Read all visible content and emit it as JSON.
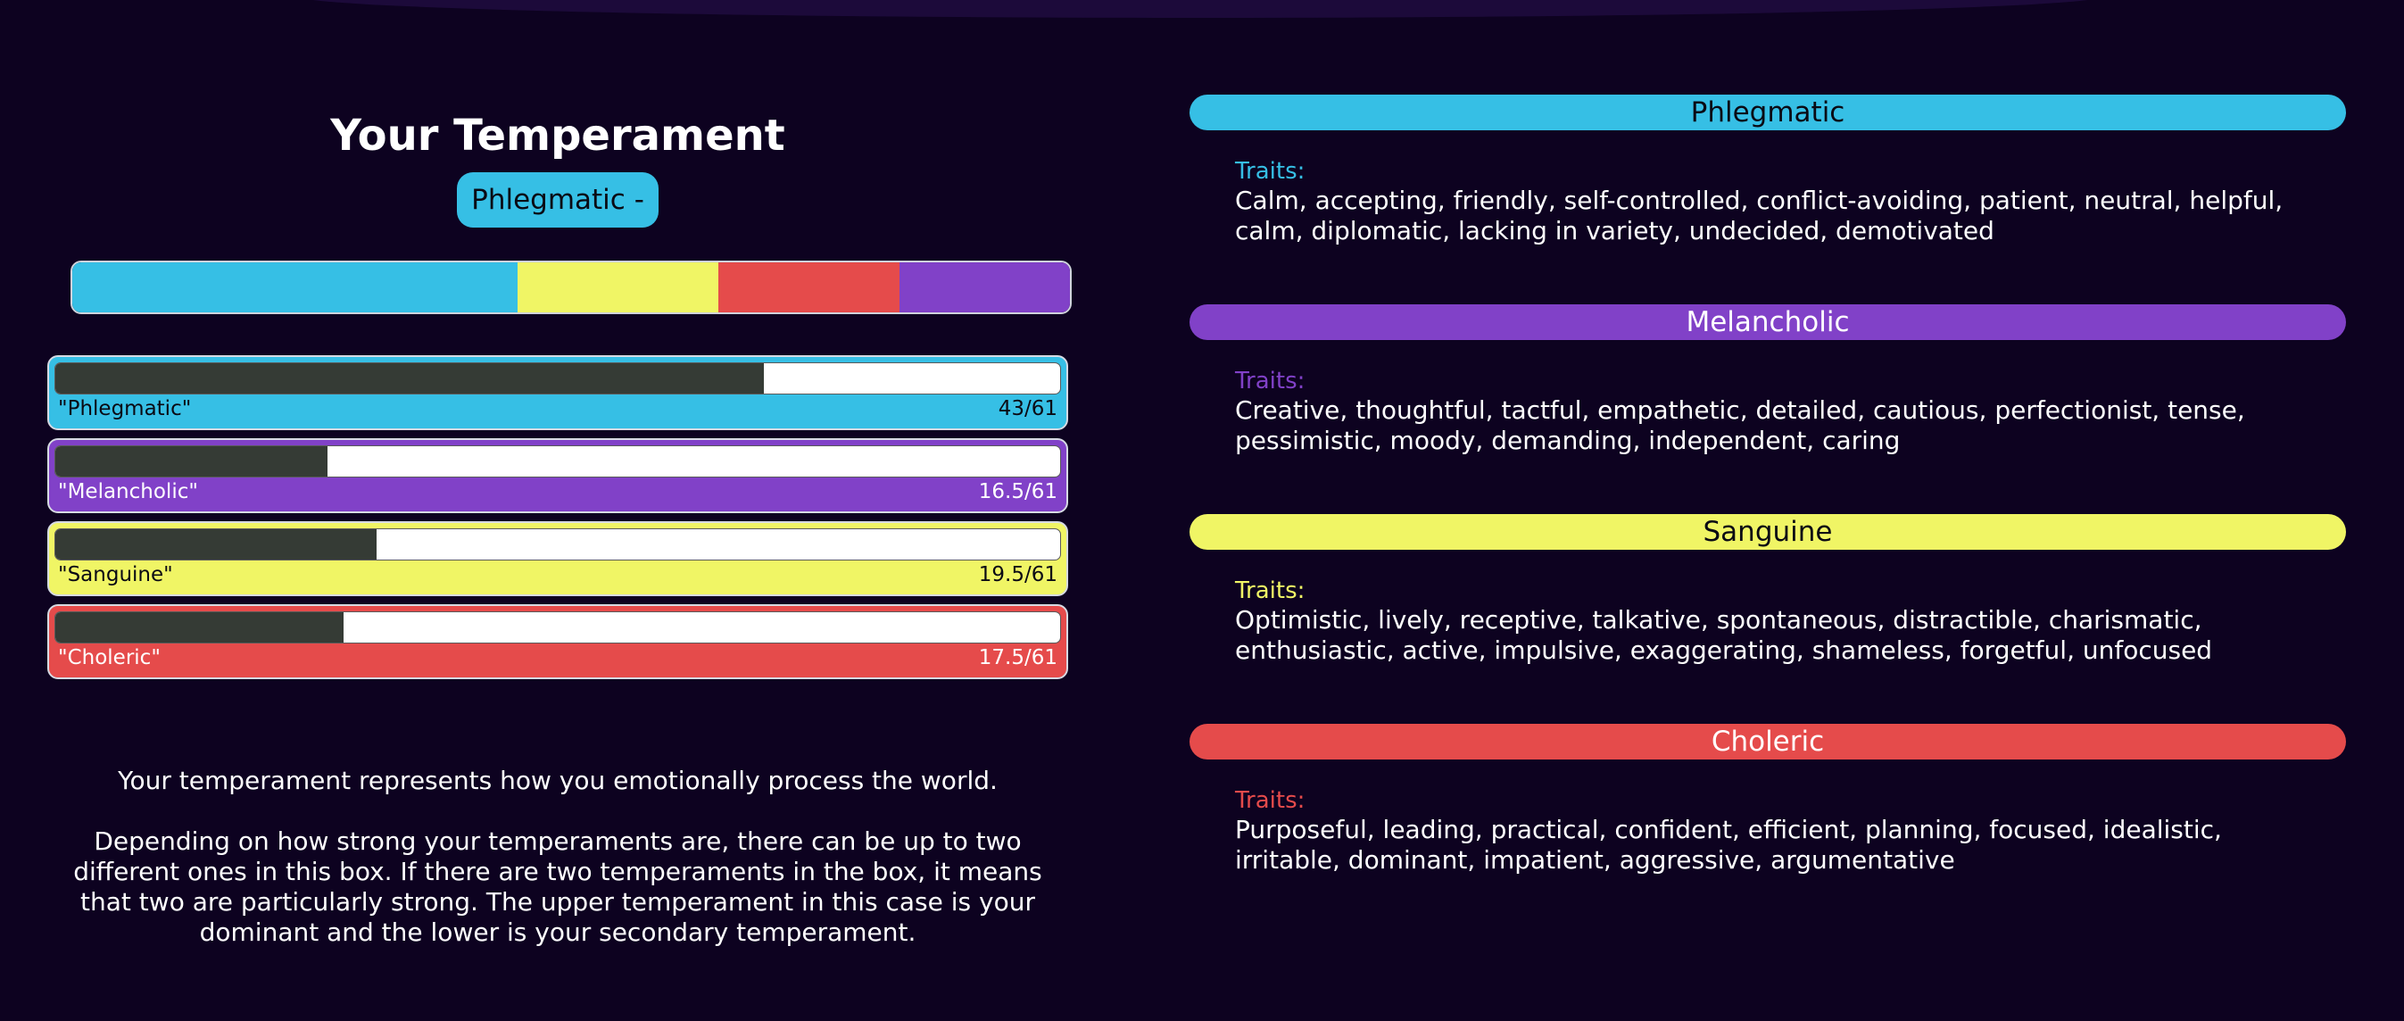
{
  "colors": {
    "background": "#0d0220",
    "phlegmatic": "#36bfe5",
    "melancholic": "#8141c8",
    "sanguine": "#f0f565",
    "choleric": "#e54b4b",
    "bar_fill": "#353b35"
  },
  "result": {
    "title": "Your Temperament",
    "badge": "Phlegmatic -"
  },
  "distribution": [
    {
      "name": "Phlegmatic",
      "share": 0.446,
      "color": "#36bfe5"
    },
    {
      "name": "Sanguine",
      "share": 0.202,
      "color": "#f0f565"
    },
    {
      "name": "Choleric",
      "share": 0.181,
      "color": "#e54b4b"
    },
    {
      "name": "Melancholic",
      "share": 0.171,
      "color": "#8141c8"
    }
  ],
  "scores": [
    {
      "label": "\"Phlegmatic\"",
      "value_text": "43/61",
      "value": 43,
      "max": 61,
      "color": "#36bfe5",
      "text_color": "#0a0a14"
    },
    {
      "label": "\"Melancholic\"",
      "value_text": "16.5/61",
      "value": 16.5,
      "max": 61,
      "color": "#8141c8",
      "text_color": "#ffffff"
    },
    {
      "label": "\"Sanguine\"",
      "value_text": "19.5/61",
      "value": 19.5,
      "max": 61,
      "color": "#f0f565",
      "text_color": "#0a0a14"
    },
    {
      "label": "\"Choleric\"",
      "value_text": "17.5/61",
      "value": 17.5,
      "max": 61,
      "color": "#e54b4b",
      "text_color": "#ffffff"
    }
  ],
  "description": {
    "p1": "Your temperament represents how you emotionally process the world.",
    "p2": "Depending on how strong your temperaments are, there can be up to two different ones in this box. If there are two temperaments in the box, it means that two are particularly strong. The upper temperament in this case is your dominant and the lower is your secondary temperament."
  },
  "temperaments": [
    {
      "name": "Phlegmatic",
      "traits_label": "Traits:",
      "traits": "Calm, accepting, friendly, self-controlled, conflict-avoiding, patient, neutral, helpful, calm, diplomatic, lacking in variety, undecided, demotivated",
      "color": "#36bfe5",
      "header_text_color": "#0a0a14"
    },
    {
      "name": "Melancholic",
      "traits_label": "Traits:",
      "traits": "Creative, thoughtful, tactful, empathetic, detailed, cautious, perfectionist, tense, pessimistic, moody, demanding, independent, caring",
      "color": "#8141c8",
      "header_text_color": "#ffffff"
    },
    {
      "name": "Sanguine",
      "traits_label": "Traits:",
      "traits": "Optimistic, lively, receptive, talkative, spontaneous, distractible, charismatic, enthusiastic, active, impulsive, exaggerating, shameless, forgetful, unfocused",
      "color": "#f0f565",
      "header_text_color": "#0a0a14"
    },
    {
      "name": "Choleric",
      "traits_label": "Traits:",
      "traits": "Purposeful, leading, practical, confident, efficient, planning, focused, idealistic, irritable, dominant, impatient, aggressive, argumentative",
      "color": "#e54b4b",
      "header_text_color": "#ffffff"
    }
  ]
}
